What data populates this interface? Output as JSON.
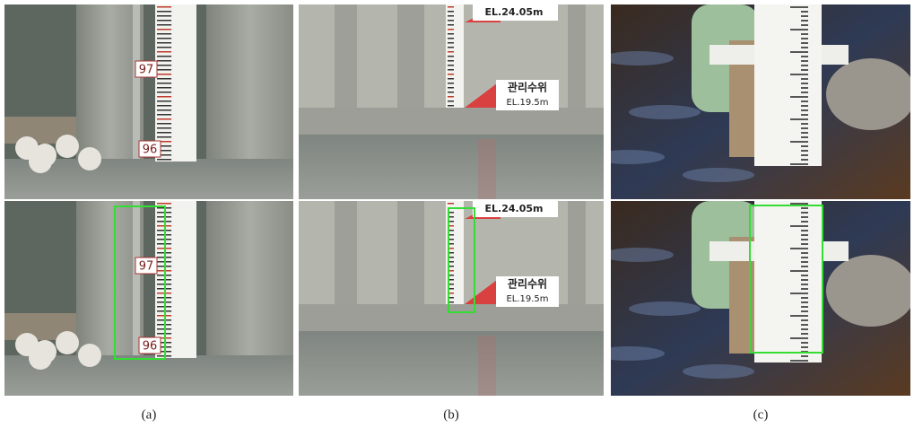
{
  "panels": [
    {
      "caption": "(a)",
      "labels": [
        "97",
        "96"
      ]
    },
    {
      "caption": "(b)",
      "labels": [
        "EL.24.05m",
        "관리수위",
        "EL.19.5m"
      ]
    },
    {
      "caption": "(c)",
      "labels": []
    }
  ]
}
